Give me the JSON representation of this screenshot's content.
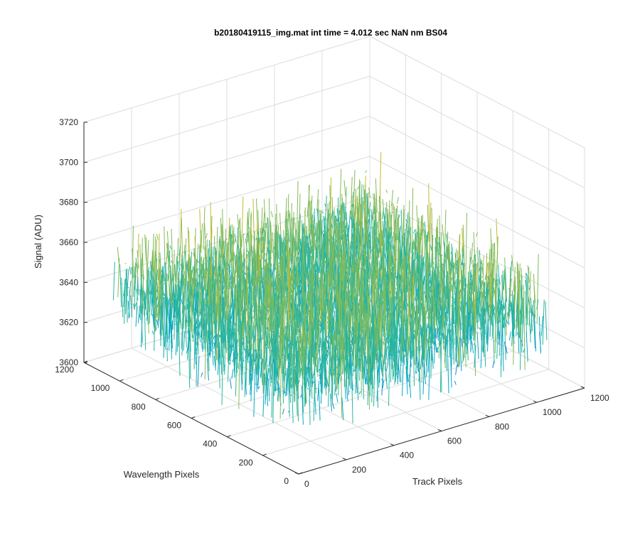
{
  "chart_data": {
    "type": "surface",
    "title": "b20180419115_img.mat int time = 4.012 sec  NaN nm BS04",
    "xlabel": "Track Pixels",
    "ylabel": "Wavelength Pixels",
    "zlabel": "Signal (ADU)",
    "xlim": [
      0,
      1200
    ],
    "ylim": [
      0,
      1200
    ],
    "zlim": [
      3600,
      3720
    ],
    "x_ticks": [
      0,
      200,
      400,
      600,
      800,
      1000,
      1200
    ],
    "y_ticks": [
      0,
      200,
      400,
      600,
      800,
      1000,
      1200
    ],
    "z_ticks": [
      3600,
      3620,
      3640,
      3660,
      3680,
      3700,
      3720
    ],
    "x_tick_labels": [
      "0",
      "200",
      "400",
      "600",
      "800",
      "1000",
      "1200"
    ],
    "y_tick_labels": [
      "0",
      "200",
      "400",
      "600",
      "800",
      "1000",
      "1200"
    ],
    "z_tick_labels": [
      "3600",
      "3620",
      "3640",
      "3660",
      "3680",
      "3700",
      "3720"
    ],
    "surface_extent": {
      "x": [
        1,
        1024
      ],
      "y": [
        1,
        1024
      ]
    },
    "signal_mean": 3645,
    "signal_range_typical": [
      3620,
      3670
    ],
    "signal_extremes": [
      3600,
      3690
    ],
    "colormap": [
      "#3e26a8",
      "#1389d2",
      "#06a7c6",
      "#2ab59d",
      "#84bb59",
      "#c6b92f",
      "#f5c02c",
      "#f9fb15"
    ],
    "grid": true
  }
}
